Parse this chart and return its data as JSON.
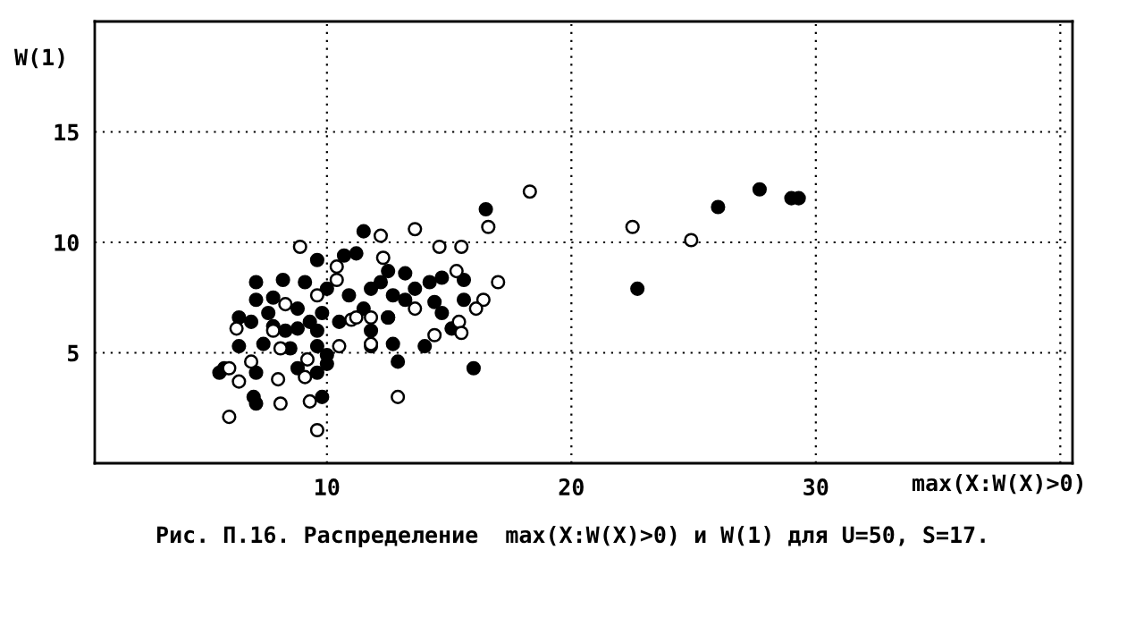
{
  "chart_data": {
    "type": "scatter",
    "title": "Рис. П.16. Распределение  max(X:W(X)>0) и W(1) для U=50, S=17.",
    "xlabel": "max(X:W(X)>0)",
    "ylabel": "W(1)",
    "xlim": [
      0.5,
      40.5
    ],
    "ylim": [
      0,
      20
    ],
    "xticks": [
      10,
      20,
      30,
      {
        "value": 40,
        "label": null
      }
    ],
    "yticks": [
      5,
      10,
      15
    ],
    "grid": true,
    "marker": "circle",
    "series": [
      {
        "color": "#ffffff",
        "x": [
          18.3,
          16.6,
          13.6,
          12.2,
          8.9,
          15.5,
          14.6,
          12.3,
          10.4,
          15.3,
          17.0,
          10.4,
          16.4,
          16.1,
          15.4,
          15.5,
          14.4,
          13.6,
          11.8,
          11.0,
          10.5,
          9.6,
          6.3,
          7.8,
          8.1,
          6.9,
          6.0,
          6.4,
          8.0,
          9.2,
          9.1,
          8.1,
          9.3,
          12.9,
          6.0,
          9.6,
          11.8,
          8.3,
          11.2,
          22.5,
          24.9
        ],
        "values": [
          12.3,
          10.7,
          10.6,
          10.3,
          9.8,
          9.8,
          9.8,
          9.3,
          8.9,
          8.7,
          8.2,
          8.3,
          7.4,
          7.0,
          6.4,
          5.9,
          5.8,
          7.0,
          6.6,
          6.5,
          5.3,
          7.6,
          6.1,
          6.0,
          5.2,
          4.6,
          4.3,
          3.7,
          3.8,
          4.7,
          3.9,
          2.7,
          2.8,
          3.0,
          2.1,
          1.5,
          5.4,
          7.2,
          6.6,
          10.7,
          10.1
        ]
      },
      {
        "color": "#000000",
        "x": [
          16.5,
          11.5,
          9.6,
          10.7,
          11.2,
          7.1,
          8.2,
          9.1,
          12.5,
          13.2,
          14.7,
          15.6,
          14.2,
          11.8,
          10.9,
          10.0,
          7.1,
          7.8,
          8.8,
          9.8,
          12.7,
          13.2,
          14.4,
          15.6,
          14.7,
          12.5,
          11.5,
          6.9,
          7.8,
          8.8,
          9.6,
          7.6,
          6.4,
          15.1,
          12.5,
          11.8,
          6.4,
          7.4,
          8.5,
          9.6,
          10.0,
          11.8,
          12.7,
          14.0,
          12.9,
          5.6,
          5.8,
          7.1,
          8.8,
          9.6,
          10.0,
          16.0,
          7.0,
          7.1,
          9.8,
          8.3,
          10.5,
          9.3,
          13.6,
          12.2,
          26.0,
          27.7,
          29.0,
          29.3,
          22.7
        ],
        "values": [
          11.5,
          10.5,
          9.2,
          9.4,
          9.5,
          8.2,
          8.3,
          8.2,
          8.7,
          8.6,
          8.4,
          8.3,
          8.2,
          7.9,
          7.6,
          7.9,
          7.4,
          7.5,
          7.0,
          6.8,
          7.6,
          7.4,
          7.3,
          7.4,
          6.8,
          6.6,
          7.0,
          6.4,
          6.2,
          6.1,
          6.0,
          6.8,
          6.6,
          6.1,
          6.6,
          6.0,
          5.3,
          5.4,
          5.2,
          5.3,
          4.9,
          5.3,
          5.4,
          5.3,
          4.6,
          4.1,
          4.3,
          4.1,
          4.3,
          4.1,
          4.5,
          4.3,
          3.0,
          2.7,
          3.0,
          6.0,
          6.4,
          6.4,
          7.9,
          8.2,
          11.6,
          12.4,
          12.0,
          12.0,
          7.9
        ]
      }
    ]
  }
}
